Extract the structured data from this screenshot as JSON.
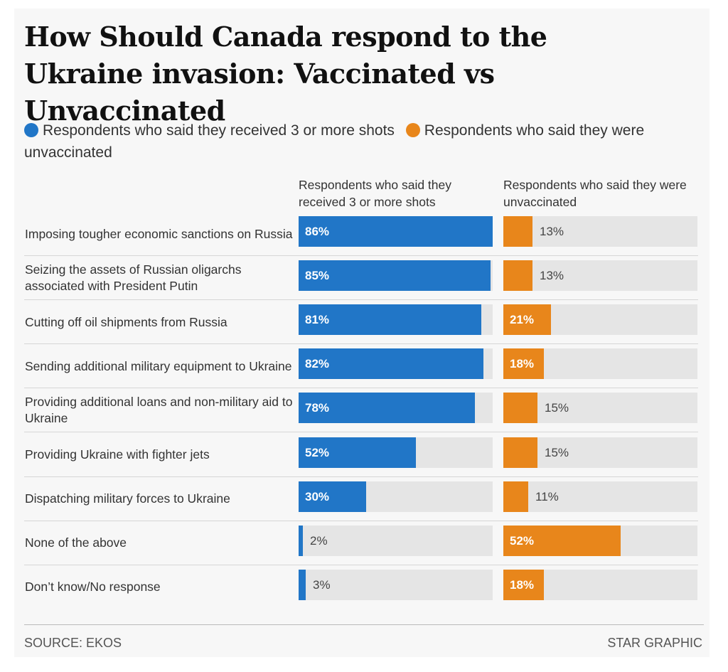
{
  "chart_data": {
    "type": "bar",
    "title": "How Should Canada respond to the Ukraine invasion: Vaccinated vs Unvaccinated",
    "legend": [
      {
        "label": "Respondents who said they received 3 or more shots",
        "color": "#2176c7"
      },
      {
        "label": "Respondents who said they were unvaccinated",
        "color": "#e8861b"
      }
    ],
    "legend_placement": "top",
    "column_headers": [
      "Respondents who said they received 3 or more shots",
      "Respondents who said they were unvaccinated"
    ],
    "categories": [
      "Imposing tougher economic sanctions on Russia",
      "Seizing the assets of Russian oligarchs associated with President Putin",
      "Cutting off oil shipments from Russia",
      "Sending additional military equipment to Ukraine",
      "Providing additional loans and non-military aid to Ukraine",
      "Providing Ukraine with fighter jets",
      "Dispatching military forces to Ukraine",
      "None of the above",
      "Don’t know/No response"
    ],
    "series": [
      {
        "name": "Respondents who said they received 3 or more shots",
        "color": "#2176c7",
        "values": [
          86,
          85,
          81,
          82,
          78,
          52,
          30,
          2,
          3
        ],
        "labels": [
          "86%",
          "85%",
          "81%",
          "82%",
          "78%",
          "52%",
          "30%",
          "2%",
          "3%"
        ]
      },
      {
        "name": "Respondents who said they were unvaccinated",
        "color": "#e8861b",
        "values": [
          13,
          13,
          21,
          18,
          15,
          15,
          11,
          52,
          18
        ],
        "labels": [
          "13%",
          "13%",
          "21%",
          "18%",
          "15%",
          "15%",
          "11%",
          "52%",
          "18%"
        ]
      }
    ],
    "xlim": [
      0,
      86
    ],
    "grid": false
  },
  "footer": {
    "source": "SOURCE: EKOS",
    "credit": "STAR GRAPHIC"
  },
  "colors": {
    "track": "#e5e5e5",
    "background": "#f7f7f7"
  }
}
